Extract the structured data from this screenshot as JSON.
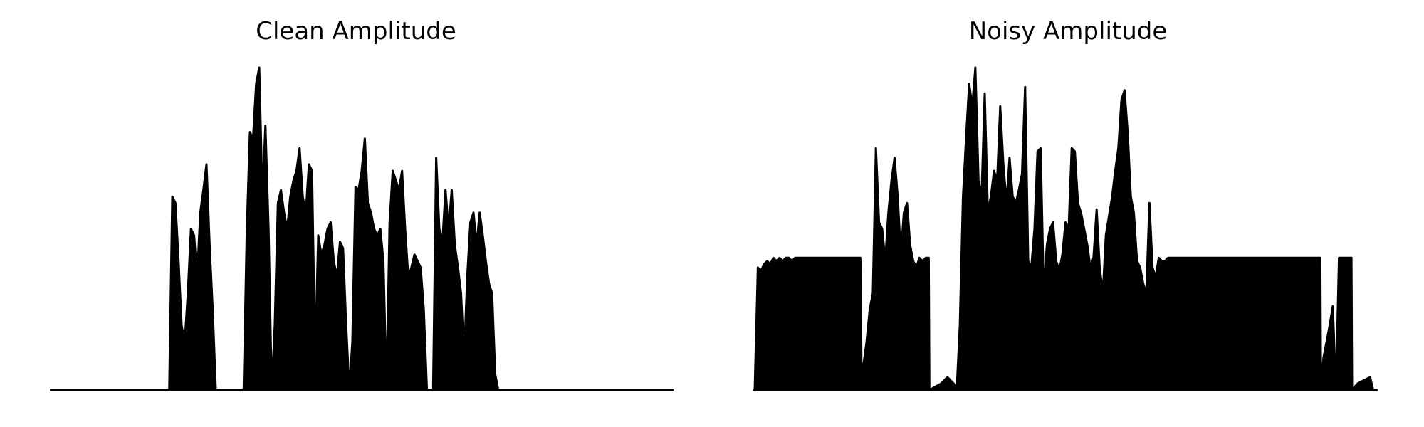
{
  "chart_data": [
    {
      "type": "area",
      "title": "Clean Amplitude",
      "xlabel": "",
      "ylabel": "",
      "axes_visible": false,
      "grid": false,
      "legend": "none",
      "xlim": [
        0,
        1000
      ],
      "ylim": [
        0,
        1.0
      ],
      "series": [
        {
          "color": "#000000",
          "envelope": [
            [
              0,
              0.0
            ],
            [
              190,
              0.0
            ],
            [
              195,
              0.6
            ],
            [
              200,
              0.58
            ],
            [
              205,
              0.4
            ],
            [
              210,
              0.2
            ],
            [
              215,
              0.15
            ],
            [
              220,
              0.3
            ],
            [
              225,
              0.5
            ],
            [
              230,
              0.48
            ],
            [
              235,
              0.35
            ],
            [
              240,
              0.55
            ],
            [
              245,
              0.62
            ],
            [
              250,
              0.7
            ],
            [
              255,
              0.45
            ],
            [
              260,
              0.25
            ],
            [
              265,
              0.0
            ],
            [
              310,
              0.0
            ],
            [
              315,
              0.5
            ],
            [
              320,
              0.8
            ],
            [
              325,
              0.78
            ],
            [
              330,
              0.95
            ],
            [
              335,
              1.0
            ],
            [
              340,
              0.6
            ],
            [
              345,
              0.82
            ],
            [
              350,
              0.5
            ],
            [
              355,
              0.0
            ],
            [
              360,
              0.2
            ],
            [
              365,
              0.58
            ],
            [
              370,
              0.62
            ],
            [
              375,
              0.55
            ],
            [
              380,
              0.5
            ],
            [
              385,
              0.6
            ],
            [
              390,
              0.65
            ],
            [
              395,
              0.68
            ],
            [
              400,
              0.75
            ],
            [
              405,
              0.6
            ],
            [
              410,
              0.55
            ],
            [
              415,
              0.7
            ],
            [
              420,
              0.68
            ],
            [
              425,
              0.1
            ],
            [
              430,
              0.48
            ],
            [
              435,
              0.42
            ],
            [
              440,
              0.45
            ],
            [
              445,
              0.5
            ],
            [
              450,
              0.52
            ],
            [
              455,
              0.4
            ],
            [
              460,
              0.35
            ],
            [
              465,
              0.46
            ],
            [
              470,
              0.44
            ],
            [
              475,
              0.2
            ],
            [
              480,
              0.0
            ],
            [
              485,
              0.15
            ],
            [
              490,
              0.63
            ],
            [
              495,
              0.62
            ],
            [
              500,
              0.68
            ],
            [
              505,
              0.78
            ],
            [
              510,
              0.58
            ],
            [
              515,
              0.55
            ],
            [
              520,
              0.5
            ],
            [
              525,
              0.48
            ],
            [
              530,
              0.5
            ],
            [
              535,
              0.4
            ],
            [
              540,
              0.0
            ],
            [
              545,
              0.52
            ],
            [
              550,
              0.68
            ],
            [
              555,
              0.65
            ],
            [
              560,
              0.62
            ],
            [
              565,
              0.68
            ],
            [
              570,
              0.5
            ],
            [
              575,
              0.35
            ],
            [
              580,
              0.38
            ],
            [
              585,
              0.42
            ],
            [
              590,
              0.4
            ],
            [
              595,
              0.38
            ],
            [
              600,
              0.25
            ],
            [
              605,
              0.0
            ],
            [
              615,
              0.0
            ],
            [
              620,
              0.72
            ],
            [
              625,
              0.5
            ],
            [
              630,
              0.46
            ],
            [
              635,
              0.62
            ],
            [
              640,
              0.5
            ],
            [
              645,
              0.62
            ],
            [
              650,
              0.45
            ],
            [
              655,
              0.38
            ],
            [
              660,
              0.3
            ],
            [
              665,
              0.1
            ],
            [
              670,
              0.35
            ],
            [
              675,
              0.52
            ],
            [
              680,
              0.55
            ],
            [
              685,
              0.45
            ],
            [
              690,
              0.55
            ],
            [
              695,
              0.48
            ],
            [
              700,
              0.4
            ],
            [
              705,
              0.33
            ],
            [
              710,
              0.3
            ],
            [
              715,
              0.05
            ],
            [
              720,
              0.0
            ],
            [
              1000,
              0.0
            ]
          ]
        }
      ]
    },
    {
      "type": "area",
      "title": "Noisy Amplitude",
      "xlabel": "",
      "ylabel": "",
      "axes_visible": false,
      "grid": false,
      "legend": "none",
      "xlim": [
        0,
        1000
      ],
      "ylim": [
        0,
        1.0
      ],
      "series": [
        {
          "color": "#000000",
          "envelope": [
            [
              0,
              0.0
            ],
            [
              5,
              0.38
            ],
            [
              10,
              0.37
            ],
            [
              15,
              0.39
            ],
            [
              20,
              0.4
            ],
            [
              25,
              0.39
            ],
            [
              30,
              0.41
            ],
            [
              35,
              0.4
            ],
            [
              40,
              0.41
            ],
            [
              45,
              0.4
            ],
            [
              50,
              0.41
            ],
            [
              55,
              0.41
            ],
            [
              60,
              0.4
            ],
            [
              65,
              0.41
            ],
            [
              70,
              0.41
            ],
            [
              75,
              0.41
            ],
            [
              80,
              0.41
            ],
            [
              85,
              0.41
            ],
            [
              90,
              0.41
            ],
            [
              95,
              0.41
            ],
            [
              100,
              0.41
            ],
            [
              105,
              0.41
            ],
            [
              110,
              0.41
            ],
            [
              115,
              0.41
            ],
            [
              120,
              0.41
            ],
            [
              125,
              0.41
            ],
            [
              130,
              0.41
            ],
            [
              135,
              0.41
            ],
            [
              140,
              0.41
            ],
            [
              145,
              0.41
            ],
            [
              150,
              0.41
            ],
            [
              155,
              0.41
            ],
            [
              160,
              0.41
            ],
            [
              165,
              0.41
            ],
            [
              170,
              0.41
            ],
            [
              172,
              0.0
            ],
            [
              175,
              0.08
            ],
            [
              180,
              0.15
            ],
            [
              185,
              0.25
            ],
            [
              190,
              0.3
            ],
            [
              195,
              0.75
            ],
            [
              200,
              0.52
            ],
            [
              205,
              0.5
            ],
            [
              210,
              0.4
            ],
            [
              215,
              0.55
            ],
            [
              220,
              0.65
            ],
            [
              225,
              0.72
            ],
            [
              230,
              0.6
            ],
            [
              235,
              0.42
            ],
            [
              240,
              0.55
            ],
            [
              245,
              0.58
            ],
            [
              250,
              0.45
            ],
            [
              255,
              0.4
            ],
            [
              260,
              0.38
            ],
            [
              265,
              0.41
            ],
            [
              270,
              0.4
            ],
            [
              275,
              0.41
            ],
            [
              280,
              0.41
            ],
            [
              281,
              0.0
            ],
            [
              300,
              0.02
            ],
            [
              310,
              0.04
            ],
            [
              320,
              0.02
            ],
            [
              325,
              0.0
            ],
            [
              330,
              0.2
            ],
            [
              335,
              0.6
            ],
            [
              340,
              0.78
            ],
            [
              345,
              0.95
            ],
            [
              350,
              0.88
            ],
            [
              355,
              1.0
            ],
            [
              360,
              0.65
            ],
            [
              365,
              0.6
            ],
            [
              370,
              0.92
            ],
            [
              375,
              0.55
            ],
            [
              380,
              0.6
            ],
            [
              385,
              0.68
            ],
            [
              390,
              0.65
            ],
            [
              395,
              0.88
            ],
            [
              400,
              0.7
            ],
            [
              405,
              0.58
            ],
            [
              410,
              0.72
            ],
            [
              415,
              0.6
            ],
            [
              420,
              0.58
            ],
            [
              425,
              0.62
            ],
            [
              430,
              0.67
            ],
            [
              435,
              0.94
            ],
            [
              440,
              0.4
            ],
            [
              445,
              0.38
            ],
            [
              450,
              0.5
            ],
            [
              455,
              0.74
            ],
            [
              460,
              0.75
            ],
            [
              465,
              0.3
            ],
            [
              470,
              0.45
            ],
            [
              475,
              0.5
            ],
            [
              480,
              0.52
            ],
            [
              485,
              0.4
            ],
            [
              490,
              0.37
            ],
            [
              495,
              0.42
            ],
            [
              500,
              0.52
            ],
            [
              505,
              0.5
            ],
            [
              510,
              0.75
            ],
            [
              515,
              0.74
            ],
            [
              520,
              0.58
            ],
            [
              525,
              0.55
            ],
            [
              530,
              0.5
            ],
            [
              535,
              0.45
            ],
            [
              540,
              0.38
            ],
            [
              545,
              0.41
            ],
            [
              550,
              0.56
            ],
            [
              555,
              0.38
            ],
            [
              560,
              0.3
            ],
            [
              565,
              0.48
            ],
            [
              570,
              0.54
            ],
            [
              575,
              0.6
            ],
            [
              580,
              0.68
            ],
            [
              585,
              0.75
            ],
            [
              590,
              0.9
            ],
            [
              595,
              0.93
            ],
            [
              600,
              0.8
            ],
            [
              605,
              0.6
            ],
            [
              610,
              0.55
            ],
            [
              615,
              0.4
            ],
            [
              620,
              0.38
            ],
            [
              625,
              0.33
            ],
            [
              630,
              0.3
            ],
            [
              635,
              0.58
            ],
            [
              640,
              0.38
            ],
            [
              645,
              0.35
            ],
            [
              650,
              0.41
            ],
            [
              655,
              0.4
            ],
            [
              660,
              0.4
            ],
            [
              665,
              0.41
            ],
            [
              670,
              0.41
            ],
            [
              675,
              0.41
            ],
            [
              680,
              0.41
            ],
            [
              685,
              0.41
            ],
            [
              690,
              0.41
            ],
            [
              700,
              0.41
            ],
            [
              710,
              0.41
            ],
            [
              720,
              0.41
            ],
            [
              730,
              0.41
            ],
            [
              740,
              0.41
            ],
            [
              750,
              0.41
            ],
            [
              760,
              0.41
            ],
            [
              770,
              0.41
            ],
            [
              780,
              0.41
            ],
            [
              790,
              0.41
            ],
            [
              800,
              0.41
            ],
            [
              810,
              0.41
            ],
            [
              820,
              0.41
            ],
            [
              830,
              0.41
            ],
            [
              840,
              0.41
            ],
            [
              850,
              0.41
            ],
            [
              860,
              0.41
            ],
            [
              870,
              0.41
            ],
            [
              880,
              0.41
            ],
            [
              890,
              0.41
            ],
            [
              900,
              0.41
            ],
            [
              910,
              0.41
            ],
            [
              911,
              0.0
            ],
            [
              915,
              0.1
            ],
            [
              920,
              0.15
            ],
            [
              925,
              0.2
            ],
            [
              930,
              0.26
            ],
            [
              935,
              0.0
            ],
            [
              940,
              0.41
            ],
            [
              945,
              0.41
            ],
            [
              950,
              0.41
            ],
            [
              955,
              0.41
            ],
            [
              960,
              0.41
            ],
            [
              961,
              0.0
            ],
            [
              970,
              0.02
            ],
            [
              980,
              0.03
            ],
            [
              990,
              0.04
            ],
            [
              995,
              0.0
            ],
            [
              1000,
              0.0
            ]
          ]
        }
      ]
    }
  ]
}
